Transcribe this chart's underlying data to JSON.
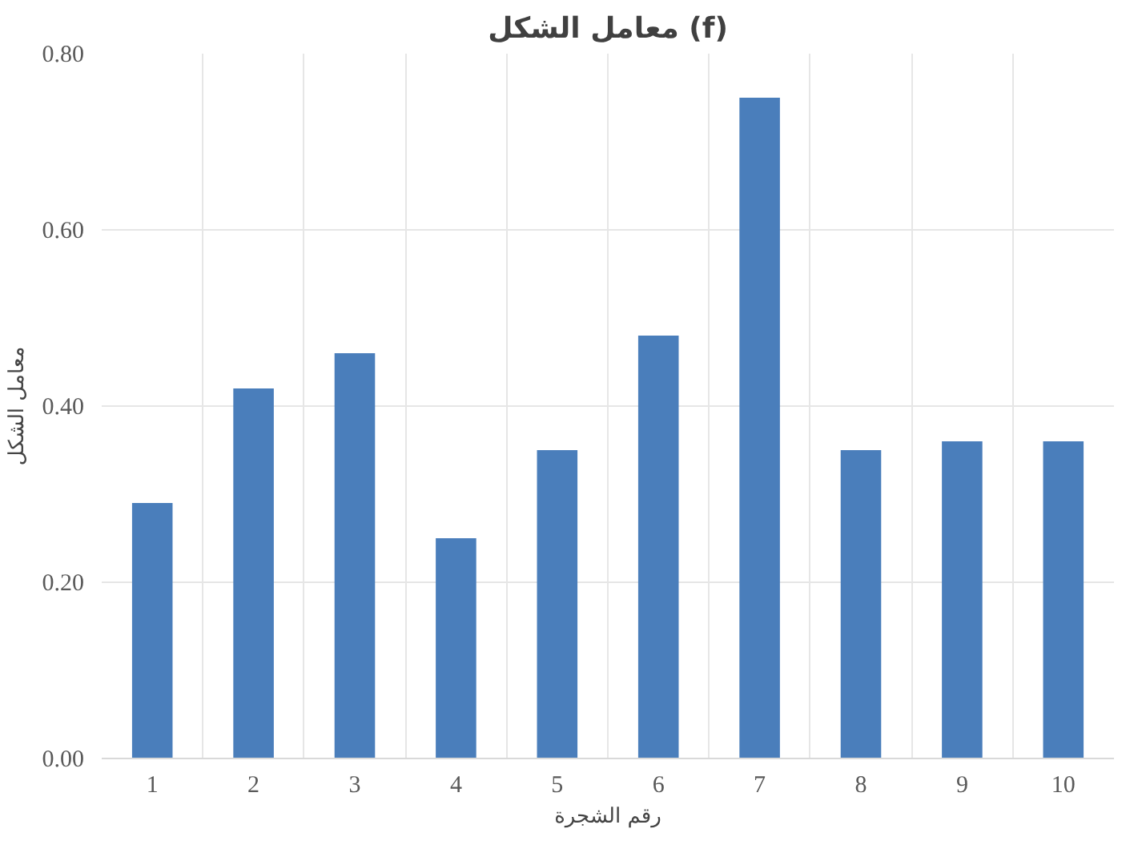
{
  "chart_data": {
    "type": "bar",
    "title": "معامل الشكل (f)",
    "xlabel": "رقم الشجرة",
    "ylabel": "معامل الشكل",
    "categories": [
      "1",
      "2",
      "3",
      "4",
      "5",
      "6",
      "7",
      "8",
      "9",
      "10"
    ],
    "values": [
      0.29,
      0.42,
      0.46,
      0.25,
      0.35,
      0.48,
      0.75,
      0.35,
      0.36,
      0.36
    ],
    "color": "#4a7ebb",
    "ylim": [
      0,
      0.8
    ],
    "yticks": [
      {
        "value": 0,
        "label": "0.00"
      },
      {
        "value": 0.2,
        "label": "0.20"
      },
      {
        "value": 0.4,
        "label": "0.40"
      },
      {
        "value": 0.6,
        "label": "0.60"
      },
      {
        "value": 0.8,
        "label": "0.80"
      }
    ],
    "grid": true
  }
}
